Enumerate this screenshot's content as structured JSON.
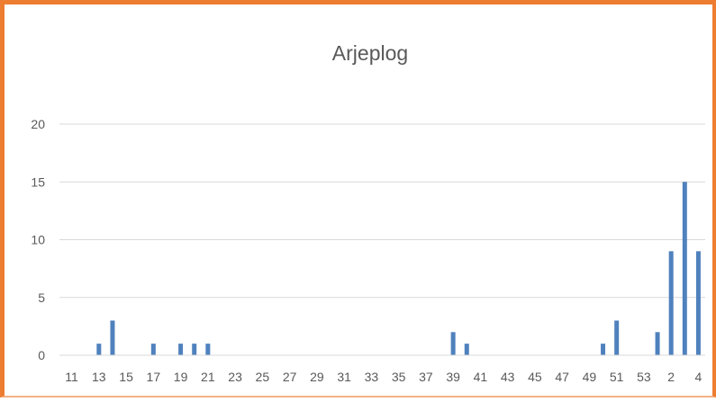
{
  "chart_data": {
    "type": "bar",
    "title": "Arjeplog",
    "xlabel": "",
    "ylabel": "",
    "ylim": [
      0,
      20
    ],
    "yticks": [
      0,
      5,
      10,
      15,
      20
    ],
    "grid": true,
    "legend": "none",
    "colors": {
      "bar": "#4f81bd",
      "grid": "#d9d9d9",
      "border": "#ed7d31"
    },
    "categories": [
      "11",
      "12",
      "13",
      "14",
      "15",
      "16",
      "17",
      "18",
      "19",
      "20",
      "21",
      "22",
      "23",
      "24",
      "25",
      "26",
      "27",
      "28",
      "29",
      "30",
      "31",
      "32",
      "33",
      "34",
      "35",
      "36",
      "37",
      "38",
      "39",
      "40",
      "41",
      "42",
      "43",
      "44",
      "45",
      "46",
      "47",
      "48",
      "49",
      "50",
      "51",
      "52",
      "53",
      "1",
      "2",
      "3",
      "4"
    ],
    "x_tick_labels": [
      "11",
      "13",
      "15",
      "17",
      "19",
      "21",
      "23",
      "25",
      "27",
      "29",
      "31",
      "33",
      "35",
      "37",
      "39",
      "41",
      "43",
      "45",
      "47",
      "49",
      "51",
      "53",
      "2",
      "4"
    ],
    "values": [
      0,
      0,
      1,
      3,
      0,
      0,
      1,
      0,
      1,
      1,
      1,
      0,
      0,
      0,
      0,
      0,
      0,
      0,
      0,
      0,
      0,
      0,
      0,
      0,
      0,
      0,
      0,
      0,
      2,
      1,
      0,
      0,
      0,
      0,
      0,
      0,
      0,
      0,
      0,
      1,
      3,
      0,
      0,
      2,
      9,
      15,
      9
    ]
  }
}
